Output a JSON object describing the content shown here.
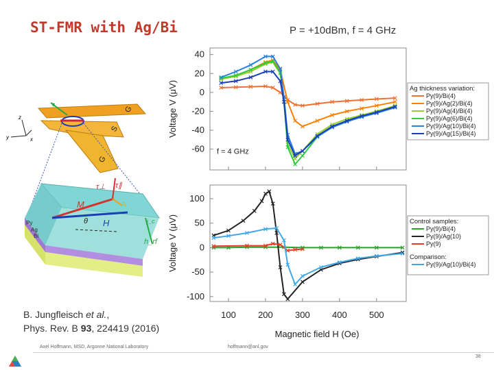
{
  "slide": {
    "title": "ST-FMR with Ag/Bi",
    "subtitle": "P = +10dBm, f = 4 GHz",
    "citation_line1_prefix": "B. Jungfleisch ",
    "citation_line1_etal": "et al.",
    "citation_line1_suffix": ",",
    "citation_line2_prefix": "Phys. Rev. B ",
    "citation_line2_volume": "93",
    "citation_line2_suffix": ", 224419 (2016)",
    "footer_author": "Axel Hoffmann, MSD, Argonne National Laboratory",
    "footer_email": "hoffmann@anl.gov",
    "page_number": "38"
  },
  "device": {
    "contact_labels": [
      "G",
      "S",
      "G"
    ],
    "axis_labels": [
      "z",
      "y",
      "x"
    ],
    "vector_labels": [
      "τ⊥",
      "τ∥",
      "τ₁",
      "M",
      "H",
      "θ",
      "h_rf",
      "j_c"
    ],
    "layer_labels": [
      "Py",
      "Ag",
      "Bi"
    ]
  },
  "chart_data": [
    {
      "type": "line",
      "title": "",
      "xlabel": "",
      "ylabel": "Voltage V (μV)",
      "xlim": [
        50,
        580
      ],
      "ylim": [
        -82,
        47
      ],
      "yticks": [
        "40",
        "20",
        "0",
        "-20",
        "-40",
        "-60"
      ],
      "annotation": "f = 4 GHz",
      "legend_title": "Ag thickness variation:",
      "legend_position": "right",
      "series": [
        {
          "name": "Py(9)/Bi(4)",
          "color": "#f07030",
          "marker": "x",
          "x": [
            80,
            120,
            160,
            200,
            220,
            240,
            260,
            280,
            300,
            340,
            380,
            420,
            460,
            500,
            550
          ],
          "values": [
            5,
            5.5,
            6,
            6.5,
            5,
            0,
            -8,
            -13,
            -14,
            -12,
            -10,
            -9,
            -8,
            -7,
            -6
          ]
        },
        {
          "name": "Py(9)/Ag(2)/Bi(4)",
          "color": "#ff7f00",
          "marker": "x",
          "x": [
            80,
            120,
            160,
            200,
            220,
            240,
            260,
            280,
            300,
            340,
            380,
            420,
            460,
            500,
            550
          ],
          "values": [
            14,
            18,
            24,
            32,
            34,
            24,
            -10,
            -30,
            -36,
            -30,
            -24,
            -20,
            -17,
            -14,
            -10
          ]
        },
        {
          "name": "Py(9)/Ag(4)/Bi(4)",
          "color": "#9acd32",
          "marker": "x",
          "x": [
            80,
            120,
            160,
            200,
            220,
            240,
            250,
            260,
            280,
            300,
            340,
            380,
            420,
            460,
            500,
            550
          ],
          "values": [
            14,
            17,
            22,
            30,
            32,
            20,
            -10,
            -55,
            -70,
            -62,
            -44,
            -34,
            -28,
            -24,
            -20,
            -14
          ]
        },
        {
          "name": "Py(9)/Ag(6)/Bi(4)",
          "color": "#2ecc40",
          "marker": "x",
          "x": [
            80,
            120,
            160,
            200,
            220,
            240,
            250,
            260,
            280,
            300,
            340,
            380,
            420,
            460,
            500,
            550
          ],
          "values": [
            15,
            18,
            24,
            31,
            33,
            21,
            -10,
            -58,
            -76,
            -67,
            -47,
            -36,
            -30,
            -25,
            -21,
            -15
          ]
        },
        {
          "name": "Py(9)/Ag(10)/Bi(4)",
          "color": "#2980d9",
          "marker": "x",
          "x": [
            80,
            120,
            160,
            200,
            220,
            240,
            250,
            260,
            280,
            300,
            340,
            380,
            420,
            460,
            500,
            550
          ],
          "values": [
            16,
            22,
            29,
            38,
            38,
            25,
            -5,
            -45,
            -65,
            -62,
            -47,
            -37,
            -31,
            -26,
            -22,
            -16
          ]
        },
        {
          "name": "Py(9)/Ag(15)/Bi(4)",
          "color": "#1a3fb5",
          "marker": "x",
          "x": [
            80,
            120,
            160,
            200,
            220,
            240,
            250,
            260,
            280,
            300,
            340,
            380,
            420,
            460,
            500,
            550
          ],
          "values": [
            10,
            12,
            16,
            22,
            22,
            12,
            -10,
            -50,
            -67,
            -62,
            -46,
            -36,
            -30,
            -25,
            -21,
            -15
          ]
        }
      ]
    },
    {
      "type": "line",
      "title": "",
      "xlabel": "Magnetic field H (Oe)",
      "ylabel": "Voltage V (μV)",
      "xlim": [
        50,
        580
      ],
      "ylim": [
        -110,
        128
      ],
      "xticks": [
        "100",
        "200",
        "300",
        "400",
        "500"
      ],
      "yticks": [
        "100",
        "50",
        "0",
        "-50",
        "-100"
      ],
      "legend_title": "Control samples:",
      "legend_comparison_title": "Comparison:",
      "legend_position": "right",
      "series": [
        {
          "name": "Py(9)/Bi(4)",
          "group": "Control samples",
          "color": "#2e9e2e",
          "marker": "x",
          "x": [
            60,
            100,
            150,
            200,
            250,
            300,
            350,
            400,
            450,
            500,
            570
          ],
          "values": [
            0,
            0,
            1,
            1,
            1,
            0,
            0,
            0,
            0,
            0,
            0
          ]
        },
        {
          "name": "Py(9)/Ag(10)",
          "group": "Control samples",
          "color": "#222222",
          "marker": "x",
          "x": [
            60,
            100,
            140,
            170,
            190,
            200,
            210,
            220,
            230,
            240,
            250,
            260,
            300,
            350,
            400,
            450,
            500,
            570
          ],
          "values": [
            25,
            35,
            55,
            75,
            95,
            110,
            115,
            90,
            30,
            -40,
            -95,
            -105,
            -70,
            -45,
            -32,
            -24,
            -18,
            -10
          ]
        },
        {
          "name": "Py(9)",
          "group": "Control samples",
          "color": "#e63c28",
          "marker": "x",
          "x": [
            60,
            150,
            200,
            220,
            240,
            260,
            280,
            300
          ],
          "values": [
            3,
            4,
            4,
            8,
            6,
            -6,
            -4,
            -3
          ]
        },
        {
          "name": "Py(9)/Ag(10)/Bi(4)",
          "group": "Comparison",
          "color": "#40a8e6",
          "marker": "x",
          "x": [
            60,
            100,
            150,
            200,
            230,
            250,
            260,
            280,
            300,
            350,
            400,
            450,
            500,
            570
          ],
          "values": [
            20,
            24,
            30,
            38,
            40,
            15,
            -35,
            -75,
            -58,
            -40,
            -30,
            -22,
            -17,
            -12
          ]
        }
      ]
    }
  ]
}
